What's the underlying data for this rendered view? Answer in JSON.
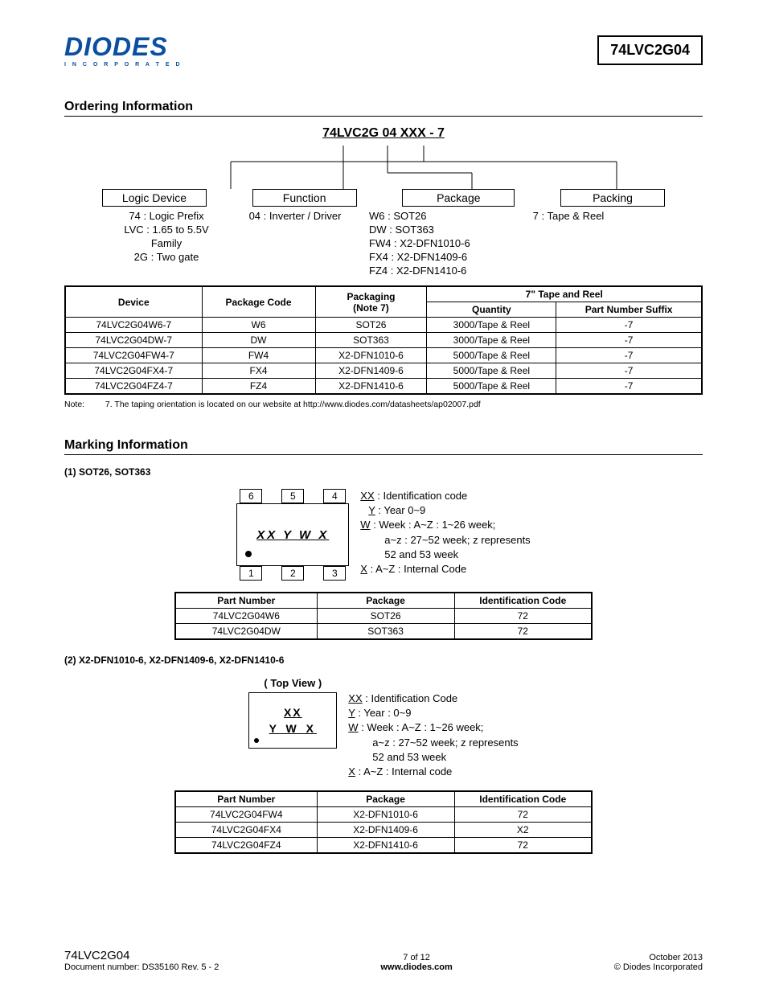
{
  "header": {
    "logo_main": "DIODES",
    "logo_sub": "I N C O R P O R A T E D",
    "part_number": "74LVC2G04"
  },
  "ordering": {
    "title": "Ordering Information",
    "pn_breakdown": "74LVC2G 04 XXX - 7",
    "boxes": {
      "logic": "Logic Device",
      "function": "Function",
      "package": "Package",
      "packing": "Packing"
    },
    "logic_desc": "74 : Logic Prefix\nLVC : 1.65 to 5.5V\nFamily\n2G : Two gate",
    "function_desc": "04 : Inverter / Driver",
    "package_desc": "W6 : SOT26\nDW : SOT363\nFW4 : X2-DFN1010-6\nFX4 : X2-DFN1409-6\nFZ4 : X2-DFN1410-6",
    "packing_desc": "7 : Tape & Reel",
    "table": {
      "headers": {
        "device": "Device",
        "pkg_code": "Package Code",
        "packaging": "Packaging\n(Note 7)",
        "tape_reel": "7\" Tape and Reel",
        "quantity": "Quantity",
        "pn_suffix": "Part Number Suffix"
      },
      "rows": [
        {
          "device": "74LVC2G04W6-7",
          "code": "W6",
          "pkg": "SOT26",
          "qty": "3000/Tape & Reel",
          "suffix": "-7"
        },
        {
          "device": "74LVC2G04DW-7",
          "code": "DW",
          "pkg": "SOT363",
          "qty": "3000/Tape & Reel",
          "suffix": "-7"
        },
        {
          "device": "74LVC2G04FW4-7",
          "code": "FW4",
          "pkg": "X2-DFN1010-6",
          "qty": "5000/Tape & Reel",
          "suffix": "-7"
        },
        {
          "device": "74LVC2G04FX4-7",
          "code": "FX4",
          "pkg": "X2-DFN1409-6",
          "qty": "5000/Tape & Reel",
          "suffix": "-7"
        },
        {
          "device": "74LVC2G04FZ4-7",
          "code": "FZ4",
          "pkg": "X2-DFN1410-6",
          "qty": "5000/Tape & Reel",
          "suffix": "-7"
        }
      ]
    },
    "note_label": "Note:",
    "note_text": "7. The taping orientation is located on our website at http://www.diodes.com/datasheets/ap02007.pdf"
  },
  "marking": {
    "title": "Marking Information",
    "sub1": "(1) SOT26, SOT363",
    "chip1_mark": "XX Y W X",
    "pins_top": [
      "6",
      "5",
      "4"
    ],
    "pins_bot": [
      "1",
      "2",
      "3"
    ],
    "legend1": {
      "xx": "XX : Identification code",
      "y": "Y : Year 0~9",
      "w": "W : Week : A~Z : 1~26 week;",
      "w2": "a~z : 27~52 week; z represents",
      "w3": "52 and 53 week",
      "x": "X : A~Z :  Internal Code"
    },
    "table1": {
      "headers": {
        "pn": "Part Number",
        "pkg": "Package",
        "id": "Identification Code"
      },
      "rows": [
        {
          "pn": "74LVC2G04W6",
          "pkg": "SOT26",
          "id": "72"
        },
        {
          "pn": "74LVC2G04DW",
          "pkg": "SOT363",
          "id": "72"
        }
      ]
    },
    "sub2": "(2) X2-DFN1010-6, X2-DFN1409-6, X2-DFN1410-6",
    "topview": "( Top View )",
    "chip2_l1": "XX",
    "chip2_l2": "Y W X",
    "legend2": {
      "xx": "XX : Identification Code",
      "y": "Y : Year : 0~9",
      "w": "W : Week : A~Z : 1~26 week;",
      "w2": "a~z : 27~52 week; z represents",
      "w3": "52 and 53 week",
      "x": "X : A~Z : Internal code"
    },
    "table2": {
      "headers": {
        "pn": "Part Number",
        "pkg": "Package",
        "id": "Identification Code"
      },
      "rows": [
        {
          "pn": "74LVC2G04FW4",
          "pkg": "X2-DFN1010-6",
          "id": "72"
        },
        {
          "pn": "74LVC2G04FX4",
          "pkg": "X2-DFN1409-6",
          "id": "X2"
        },
        {
          "pn": "74LVC2G04FZ4",
          "pkg": "X2-DFN1410-6",
          "id": "72"
        }
      ]
    }
  },
  "footer": {
    "part": "74LVC2G04",
    "doc": "Document number: DS35160  Rev. 5 - 2",
    "page": "7 of 12",
    "url": "www.diodes.com",
    "date": "October 2013",
    "copyright": "© Diodes Incorporated"
  }
}
